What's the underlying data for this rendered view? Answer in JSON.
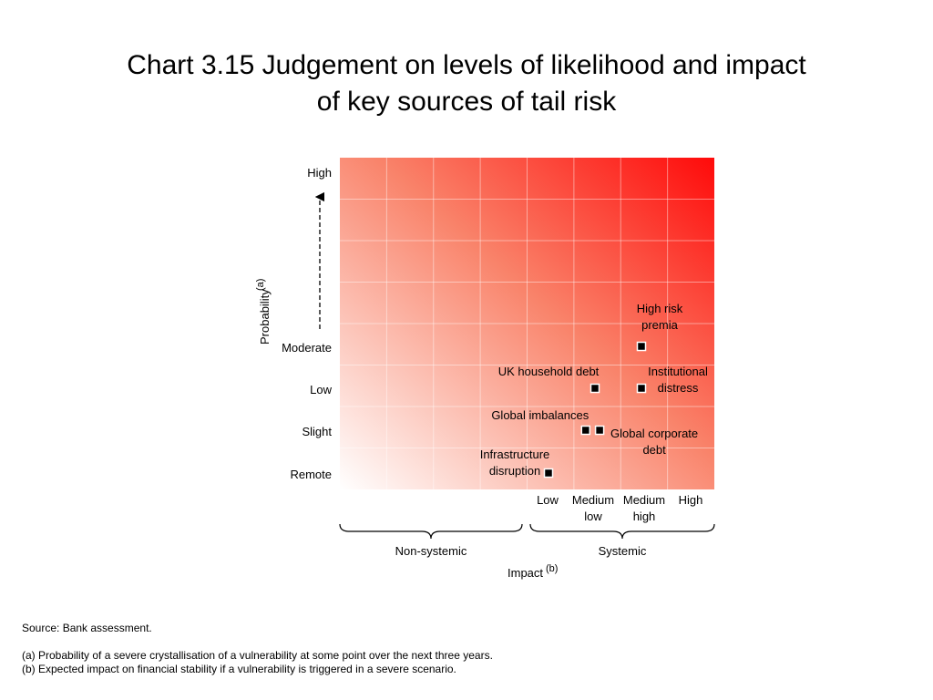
{
  "title": {
    "line1": "Chart 3.15  Judgement on levels of likelihood and impact",
    "line2": "of key sources of tail risk"
  },
  "chart_data": {
    "type": "scatter",
    "y_axis": {
      "label": "Probability",
      "label_superscript": "(a)",
      "categories": [
        "Remote",
        "Slight",
        "Low",
        "Moderate",
        "High"
      ]
    },
    "x_axis": {
      "label": "Impact",
      "label_superscript": "(b)",
      "categories": [
        "Low",
        "Medium low",
        "Medium high",
        "High"
      ],
      "groups": [
        "Non-systemic",
        "Systemic"
      ]
    },
    "points": [
      {
        "name": "High risk premia",
        "lines": [
          "High risk",
          "premia"
        ],
        "x": 3.0,
        "y": "Moderate"
      },
      {
        "name": "UK household debt",
        "lines": [
          "UK household debt"
        ],
        "x": 2.0,
        "y": "Low"
      },
      {
        "name": "Institutional distress",
        "lines": [
          "Institutional",
          "distress"
        ],
        "x": 3.0,
        "y": "Low"
      },
      {
        "name": "Global imbalances",
        "lines": [
          "Global imbalances"
        ],
        "x": 1.8,
        "y": "Slight"
      },
      {
        "name": "Global corporate debt",
        "lines": [
          "Global corporate",
          "debt"
        ],
        "x": 2.1,
        "y": "Slight"
      },
      {
        "name": "Infrastructure disruption",
        "lines": [
          "Infrastructure",
          "disruption"
        ],
        "x": 1.0,
        "y": "Remote"
      }
    ],
    "colors": {
      "low_risk": "#ffffff",
      "high_risk": "#ff0a0a",
      "grid": "#ffffff",
      "marker": "#000000"
    }
  },
  "footnotes": {
    "source": "Source:  Bank assessment.",
    "note_a": "(a)  Probability of a severe crystallisation of a vulnerability at some point over the next three years.",
    "note_b": "(b)  Expected impact on financial stability if a vulnerability is triggered in a severe scenario."
  }
}
